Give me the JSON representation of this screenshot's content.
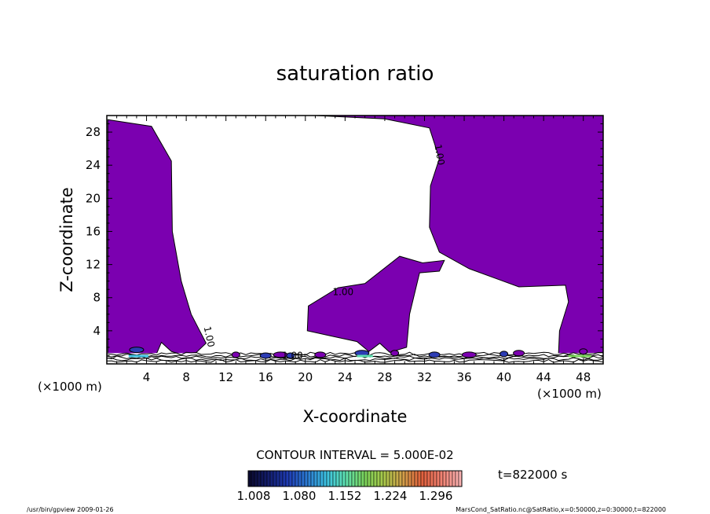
{
  "chart_data": {
    "type": "contour",
    "title": "saturation ratio",
    "xlabel": "X-coordinate",
    "ylabel": "Z-coordinate",
    "x_unit": "(×1000 m)",
    "y_unit": "(×1000 m)",
    "xlim": [
      0,
      50
    ],
    "ylim": [
      0,
      30
    ],
    "x_ticks": [
      4,
      8,
      12,
      16,
      20,
      24,
      28,
      32,
      36,
      40,
      44,
      48
    ],
    "y_ticks": [
      4,
      8,
      12,
      16,
      20,
      24,
      28
    ],
    "contour_interval_label": "CONTOUR INTERVAL = 5.000E-02",
    "time_label": "t=822000 s",
    "contour_labels": [
      "1.00",
      "1.00",
      "1.00",
      "1.00"
    ],
    "colorbar_ticks": [
      "1.008",
      "1.080",
      "1.152",
      "1.224",
      "1.296"
    ],
    "colors": {
      "fill_region": "#7b00b0",
      "colorbar": [
        "#0a0a30",
        "#141e6e",
        "#1f3cb4",
        "#2c7ad2",
        "#3cc0e0",
        "#5ee0b0",
        "#7ad25a",
        "#a8c84a",
        "#d2a04a",
        "#e0603c",
        "#f08070",
        "#f8b0b0"
      ]
    },
    "regions_description_units": "data units (x in 1000 m, z in 1000 m)",
    "supersaturated_regions": [
      {
        "name": "left",
        "points": [
          [
            0.1,
            29.5
          ],
          [
            4.5,
            28.7
          ],
          [
            6.5,
            24.5
          ],
          [
            6.6,
            16
          ],
          [
            7.5,
            10
          ],
          [
            8.5,
            6
          ],
          [
            10,
            2.5
          ],
          [
            8.5,
            0.8
          ],
          [
            6.5,
            1.5
          ],
          [
            5.5,
            2.6
          ],
          [
            5,
            1.2
          ],
          [
            0.1,
            1.2
          ]
        ]
      },
      {
        "name": "central",
        "points": [
          [
            23.3,
            9.2
          ],
          [
            26,
            9.7
          ],
          [
            29.5,
            13
          ],
          [
            31.8,
            12.2
          ],
          [
            34,
            12.5
          ],
          [
            33.5,
            11.2
          ],
          [
            31.5,
            11
          ],
          [
            30.5,
            6
          ],
          [
            30.2,
            2
          ],
          [
            28.5,
            1.4
          ],
          [
            27.5,
            2.5
          ],
          [
            26.4,
            1.5
          ],
          [
            25.2,
            2.7
          ],
          [
            22.5,
            3.4
          ],
          [
            20.2,
            4
          ],
          [
            20.3,
            7
          ]
        ]
      },
      {
        "name": "right",
        "points": [
          [
            21,
            30
          ],
          [
            50,
            30
          ],
          [
            50,
            1.3
          ],
          [
            45.5,
            1.2
          ],
          [
            45.6,
            4
          ],
          [
            46.5,
            7.5
          ],
          [
            46.2,
            9.5
          ],
          [
            41.5,
            9.3
          ],
          [
            36.5,
            11.5
          ],
          [
            33.5,
            13.5
          ],
          [
            32.5,
            16.5
          ],
          [
            32.6,
            21.5
          ],
          [
            33.5,
            24.8
          ],
          [
            32.5,
            28.5
          ],
          [
            28,
            29.6
          ]
        ]
      }
    ]
  },
  "footer": {
    "left": "/usr/bin/gpview   2009-01-26",
    "right": "MarsCond_SatRatio.nc@SatRatio,x=0:50000,z=0:30000,t=822000"
  }
}
